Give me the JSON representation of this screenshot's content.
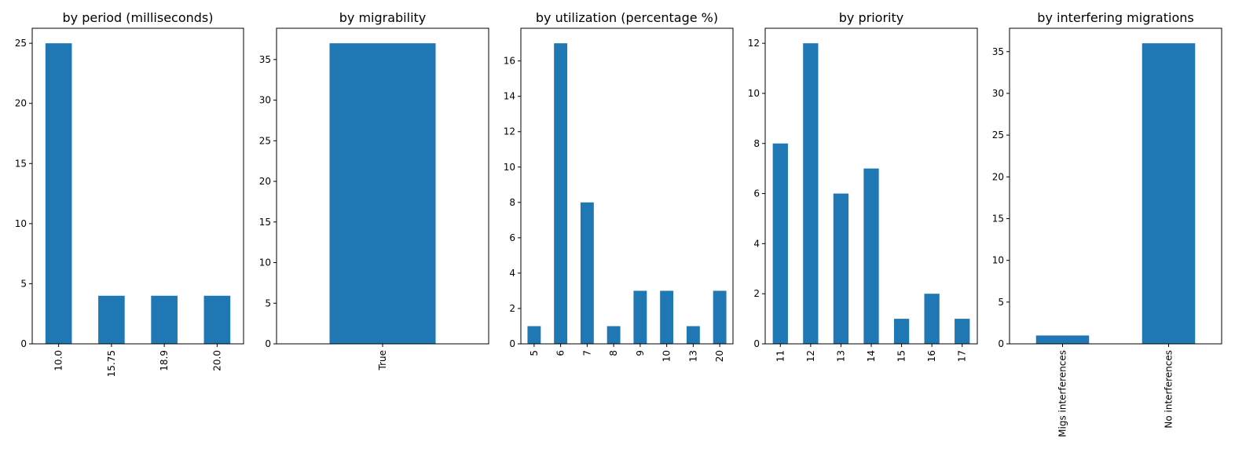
{
  "chart_data": [
    {
      "type": "bar",
      "title": "by period (milliseconds)",
      "categories": [
        "10.0",
        "15.75",
        "18.9",
        "20.0"
      ],
      "values": [
        25,
        4,
        4,
        4
      ],
      "ylim": [
        0,
        26.25
      ],
      "yticks": [
        0,
        5,
        10,
        15,
        20,
        25
      ],
      "bar_color": "#1f77b4",
      "grid": false,
      "xtick_rotation": 90
    },
    {
      "type": "bar",
      "title": "by migrability",
      "categories": [
        "True"
      ],
      "values": [
        37
      ],
      "ylim": [
        0,
        38.85
      ],
      "yticks": [
        0,
        5,
        10,
        15,
        20,
        25,
        30,
        35
      ],
      "bar_color": "#1f77b4",
      "grid": false,
      "xtick_rotation": 90
    },
    {
      "type": "bar",
      "title": "by utilization (percentage %)",
      "categories": [
        "5",
        "6",
        "7",
        "8",
        "9",
        "10",
        "13",
        "20"
      ],
      "values": [
        1,
        17,
        8,
        1,
        3,
        3,
        1,
        3
      ],
      "ylim": [
        0,
        17.85
      ],
      "yticks": [
        0,
        2,
        4,
        6,
        8,
        10,
        12,
        14,
        16
      ],
      "bar_color": "#1f77b4",
      "grid": false,
      "xtick_rotation": 90
    },
    {
      "type": "bar",
      "title": "by priority",
      "categories": [
        "11",
        "12",
        "13",
        "14",
        "15",
        "16",
        "17"
      ],
      "values": [
        8,
        12,
        6,
        7,
        1,
        2,
        1
      ],
      "ylim": [
        0,
        12.6
      ],
      "yticks": [
        0,
        2,
        4,
        6,
        8,
        10,
        12
      ],
      "bar_color": "#1f77b4",
      "grid": false,
      "xtick_rotation": 90
    },
    {
      "type": "bar",
      "title": "by interfering migrations",
      "categories": [
        "Migs interferences",
        "No interferences"
      ],
      "values": [
        1,
        36
      ],
      "ylim": [
        0,
        37.8
      ],
      "yticks": [
        0,
        5,
        10,
        15,
        20,
        25,
        30,
        35
      ],
      "bar_color": "#1f77b4",
      "grid": false,
      "xtick_rotation": 90
    }
  ]
}
